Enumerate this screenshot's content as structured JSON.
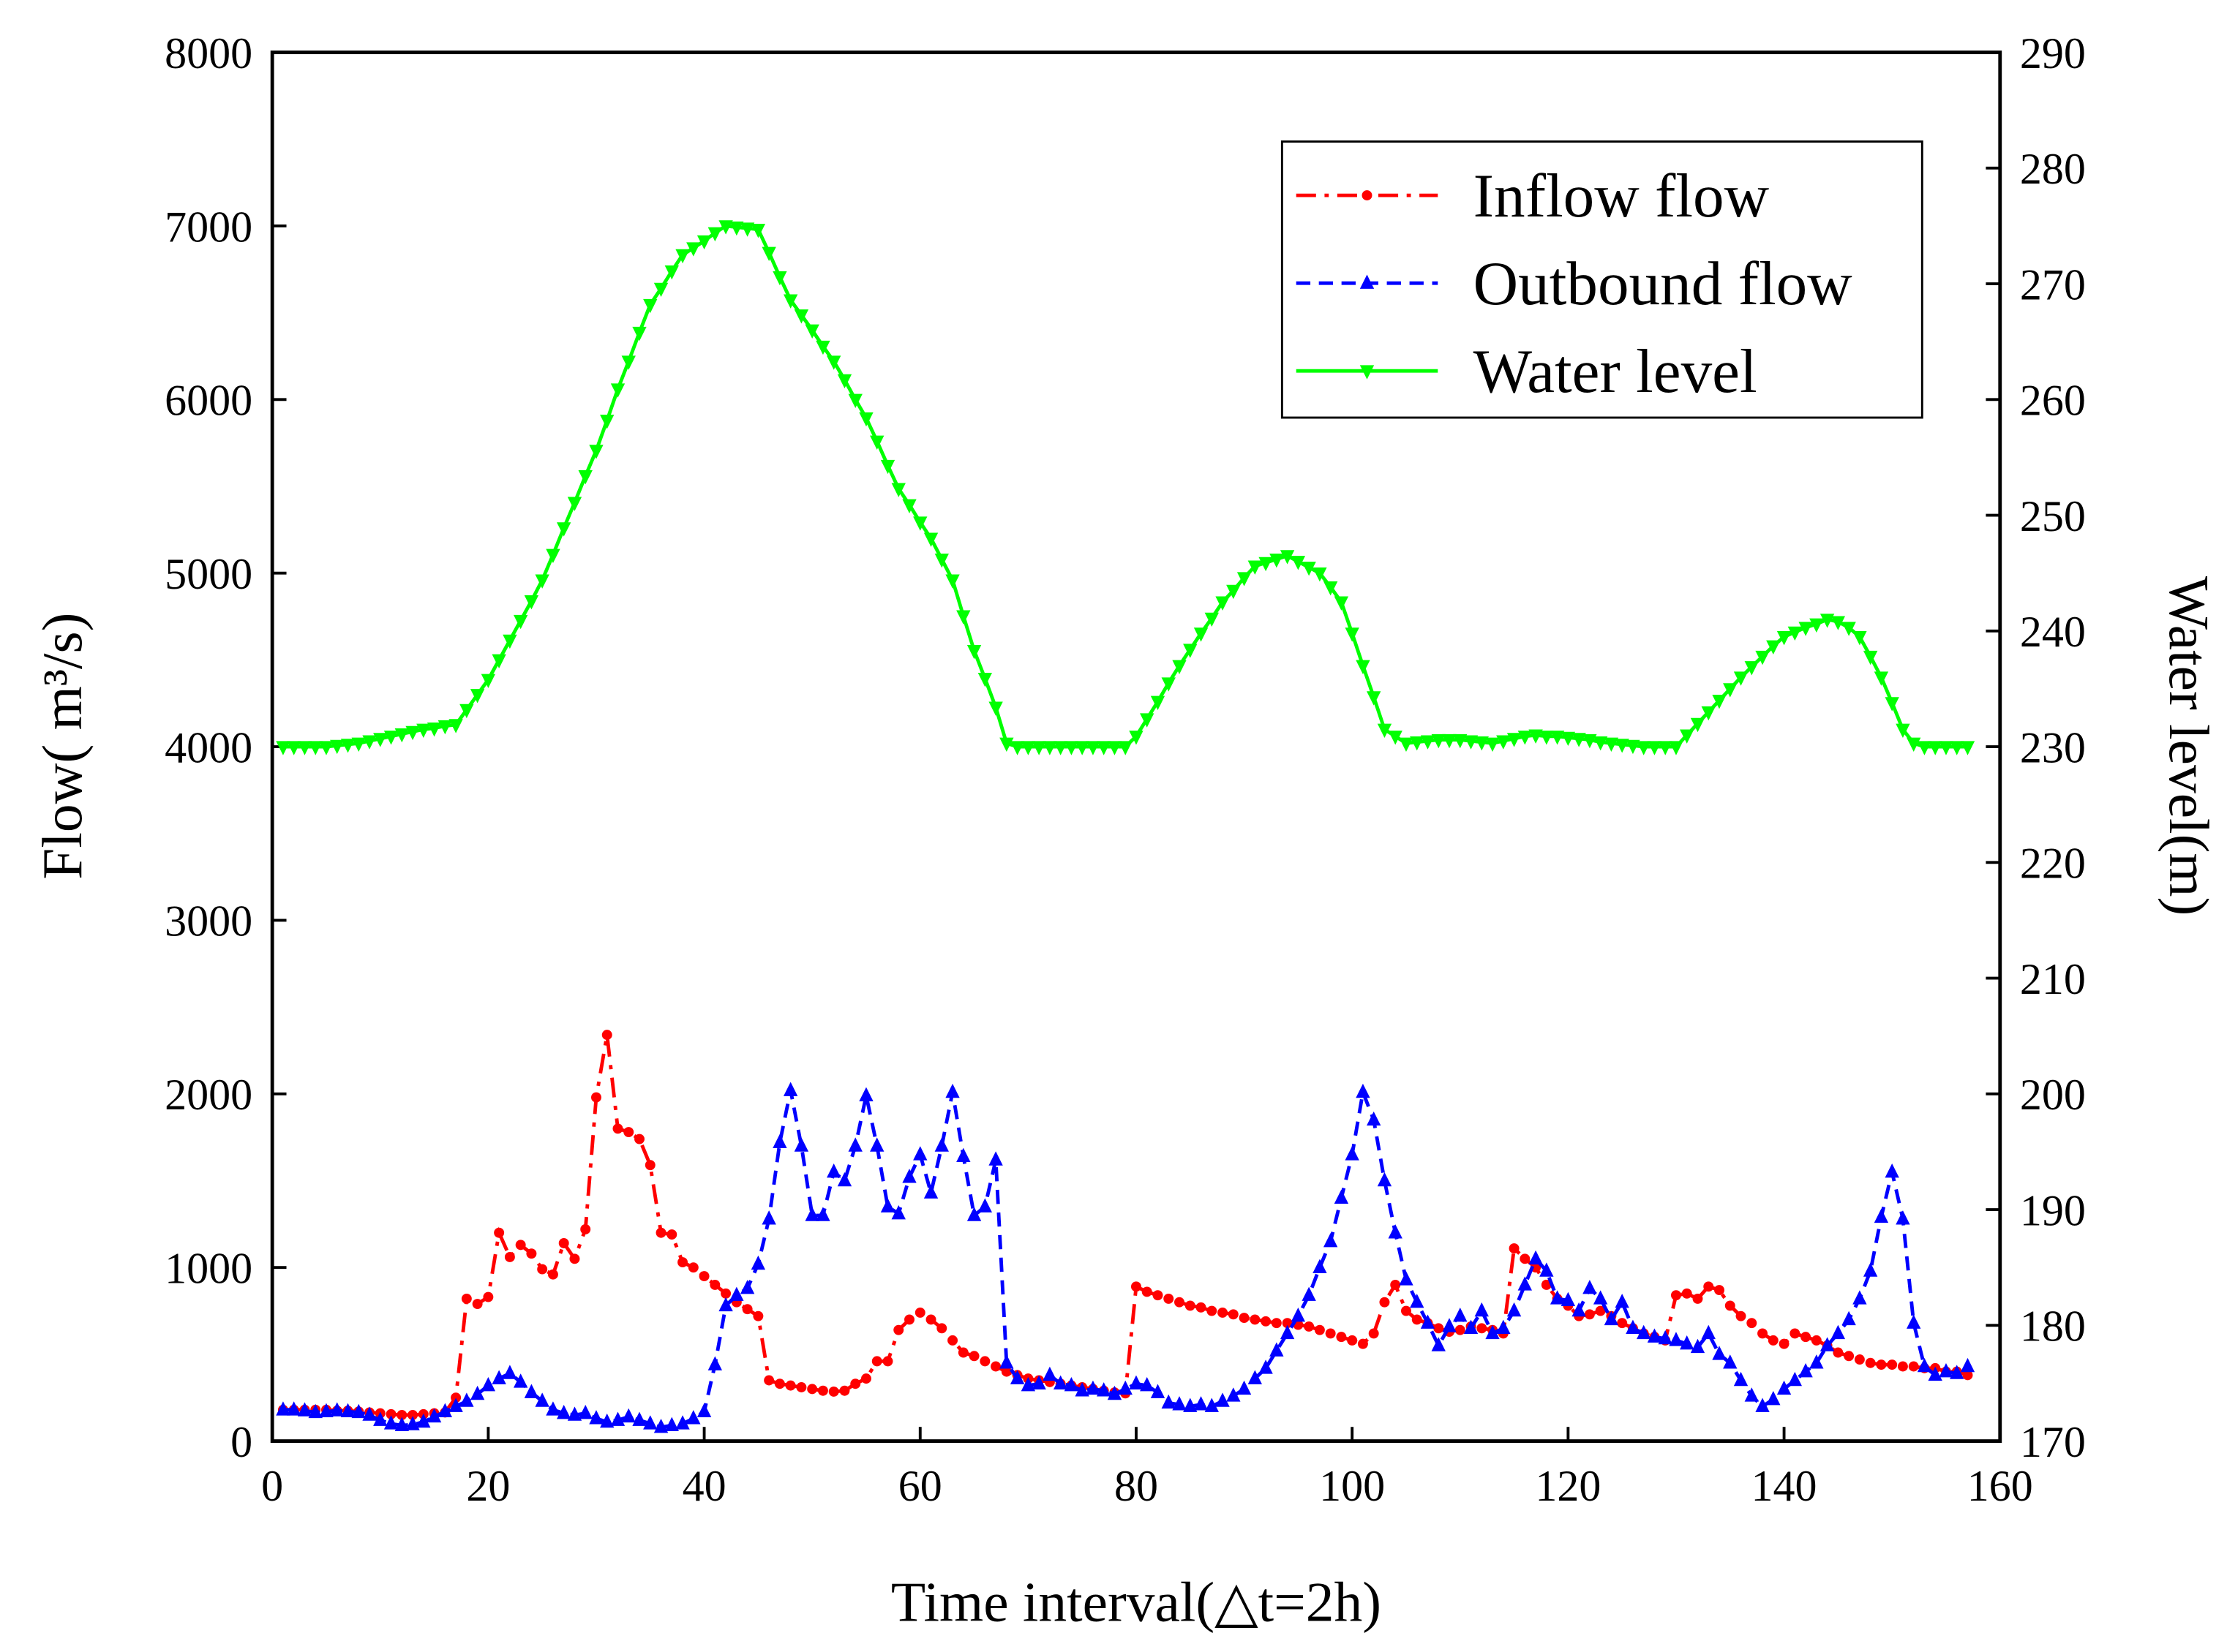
{
  "chart_data": {
    "type": "line",
    "xlabel": "Time interval(△t=2h)",
    "ylabel": "Flow( m³/s)",
    "y2label": "Water level(m)",
    "xlim": [
      0,
      160
    ],
    "xticks": [
      0,
      20,
      40,
      60,
      80,
      100,
      120,
      140,
      160
    ],
    "ylim": [
      0,
      8000
    ],
    "yticks": [
      0,
      1000,
      2000,
      3000,
      4000,
      5000,
      6000,
      7000,
      8000
    ],
    "y2lim": [
      170,
      290
    ],
    "y2ticks": [
      170,
      180,
      190,
      200,
      210,
      220,
      230,
      240,
      250,
      260,
      270,
      280,
      290
    ],
    "legend": "upper right",
    "x": [
      1,
      2,
      3,
      4,
      5,
      6,
      7,
      8,
      9,
      10,
      11,
      12,
      13,
      14,
      15,
      16,
      17,
      18,
      19,
      20,
      21,
      22,
      23,
      24,
      25,
      26,
      27,
      28,
      29,
      30,
      31,
      32,
      33,
      34,
      35,
      36,
      37,
      38,
      39,
      40,
      41,
      42,
      43,
      44,
      45,
      46,
      47,
      48,
      49,
      50,
      51,
      52,
      53,
      54,
      55,
      56,
      57,
      58,
      59,
      60,
      61,
      62,
      63,
      64,
      65,
      66,
      67,
      68,
      69,
      70,
      71,
      72,
      73,
      74,
      75,
      76,
      77,
      78,
      79,
      80,
      81,
      82,
      83,
      84,
      85,
      86,
      87,
      88,
      89,
      90,
      91,
      92,
      93,
      94,
      95,
      96,
      97,
      98,
      99,
      100,
      101,
      102,
      103,
      104,
      105,
      106,
      107,
      108,
      109,
      110,
      111,
      112,
      113,
      114,
      115,
      116,
      117,
      118,
      119,
      120,
      121,
      122,
      123,
      124,
      125,
      126,
      127,
      128,
      129,
      130,
      131,
      132,
      133,
      134,
      135,
      136,
      137,
      138,
      139,
      140,
      141,
      142,
      143,
      144,
      145,
      146,
      147,
      148,
      149,
      150,
      151,
      152,
      153,
      154,
      155,
      156,
      157
    ],
    "series": [
      {
        "name": "Inflow flow",
        "color": "#ff0000",
        "linestyle": "dashdot",
        "marker": "circle",
        "axis": "y",
        "values": [
          180,
          180,
          180,
          180,
          180,
          175,
          175,
          170,
          165,
          160,
          155,
          150,
          150,
          155,
          160,
          165,
          250,
          820,
          790,
          830,
          1200,
          1060,
          1130,
          1080,
          990,
          960,
          1140,
          1050,
          1220,
          1980,
          2340,
          1800,
          1780,
          1740,
          1590,
          1200,
          1190,
          1030,
          1000,
          950,
          900,
          850,
          800,
          760,
          720,
          350,
          330,
          320,
          310,
          300,
          290,
          285,
          290,
          330,
          360,
          460,
          460,
          640,
          700,
          740,
          700,
          650,
          580,
          510,
          490,
          460,
          430,
          400,
          380,
          360,
          350,
          340,
          330,
          320,
          310,
          300,
          290,
          280,
          275,
          890,
          860,
          840,
          820,
          800,
          780,
          770,
          750,
          740,
          730,
          710,
          700,
          690,
          680,
          680,
          670,
          660,
          640,
          620,
          600,
          580,
          560,
          620,
          800,
          900,
          750,
          700,
          680,
          650,
          630,
          640,
          660,
          650,
          640,
          620,
          1110,
          1050,
          1000,
          900,
          820,
          780,
          720,
          730,
          750,
          720,
          680,
          650,
          620,
          600,
          580,
          840,
          850,
          820,
          890,
          870,
          780,
          720,
          680,
          620,
          580,
          560,
          620,
          600,
          580,
          550,
          510,
          490,
          470,
          450,
          440,
          440,
          430,
          430,
          420,
          420,
          400,
          400,
          380
        ]
      },
      {
        "name": "Outbound flow",
        "color": "#0000ff",
        "linestyle": "dashed",
        "marker": "triangle-up",
        "axis": "y",
        "values": [
          180,
          180,
          175,
          165,
          170,
          175,
          170,
          165,
          150,
          120,
          100,
          90,
          95,
          110,
          140,
          170,
          200,
          230,
          270,
          320,
          360,
          390,
          340,
          280,
          230,
          180,
          160,
          150,
          160,
          130,
          110,
          120,
          140,
          120,
          100,
          80,
          90,
          100,
          130,
          170,
          440,
          780,
          840,
          880,
          1020,
          1280,
          1720,
          2020,
          1700,
          1300,
          1300,
          1550,
          1500,
          1700,
          1990,
          1700,
          1350,
          1310,
          1520,
          1650,
          1430,
          1700,
          2010,
          1640,
          1300,
          1350,
          1620,
          450,
          360,
          320,
          330,
          380,
          330,
          320,
          290,
          300,
          290,
          270,
          300,
          330,
          320,
          280,
          220,
          210,
          200,
          210,
          200,
          230,
          260,
          300,
          360,
          420,
          520,
          620,
          720,
          840,
          1000,
          1150,
          1400,
          1650,
          2010,
          1850,
          1500,
          1200,
          930,
          800,
          680,
          550,
          660,
          720,
          650,
          750,
          620,
          650,
          750,
          900,
          1050,
          980,
          820,
          810,
          750,
          880,
          820,
          700,
          800,
          650,
          620,
          600,
          590,
          580,
          560,
          540,
          620,
          500,
          450,
          350,
          260,
          200,
          240,
          300,
          350,
          400,
          450,
          550,
          620,
          700,
          820,
          980,
          1290,
          1550,
          1280,
          680,
          430,
          380,
          400,
          390,
          430
        ]
      },
      {
        "name": "Water level",
        "color": "#00ff00",
        "linestyle": "solid",
        "marker": "triangle-down",
        "axis": "y2",
        "values": [
          230,
          230,
          230,
          230,
          230,
          230.1,
          230.2,
          230.3,
          230.5,
          230.7,
          230.9,
          231.1,
          231.3,
          231.5,
          231.6,
          231.8,
          231.9,
          233.2,
          234.5,
          235.8,
          237.5,
          239.2,
          240.9,
          242.6,
          244.4,
          246.6,
          248.9,
          251.1,
          253.4,
          255.6,
          258.2,
          260.9,
          263.3,
          265.8,
          268.2,
          269.6,
          271.1,
          272.5,
          273.1,
          273.7,
          274.4,
          275,
          274.9,
          274.8,
          274.7,
          272.7,
          270.6,
          268.6,
          267.3,
          266,
          264.6,
          263.3,
          261.7,
          260,
          258.4,
          256.4,
          254.3,
          252.3,
          250.9,
          249.4,
          248,
          246.2,
          244.4,
          241.3,
          238.3,
          235.9,
          233.4,
          230.3,
          230,
          230,
          230,
          230,
          230,
          230,
          230,
          230,
          230,
          230,
          230,
          230.9,
          232.4,
          233.9,
          235.5,
          237,
          238.4,
          239.8,
          241.1,
          242.5,
          243.5,
          244.6,
          245.6,
          245.9,
          246.2,
          246.5,
          246,
          245.5,
          245,
          243.8,
          242.5,
          239.8,
          237,
          234.3,
          231.5,
          230.9,
          230.3,
          230.4,
          230.5,
          230.6,
          230.6,
          230.6,
          230.5,
          230.4,
          230.3,
          230.5,
          230.7,
          230.9,
          231,
          230.9,
          230.9,
          230.8,
          230.7,
          230.6,
          230.4,
          230.3,
          230.2,
          230.1,
          230,
          230,
          230,
          230,
          231,
          232,
          233,
          234,
          235,
          236,
          236.9,
          237.8,
          238.7,
          239.5,
          239.9,
          240.3,
          240.6,
          241,
          240.8,
          240.3,
          239.5,
          237.8,
          236,
          233.8,
          231.5,
          230.3,
          230,
          230,
          230,
          230,
          230
        ]
      }
    ]
  }
}
